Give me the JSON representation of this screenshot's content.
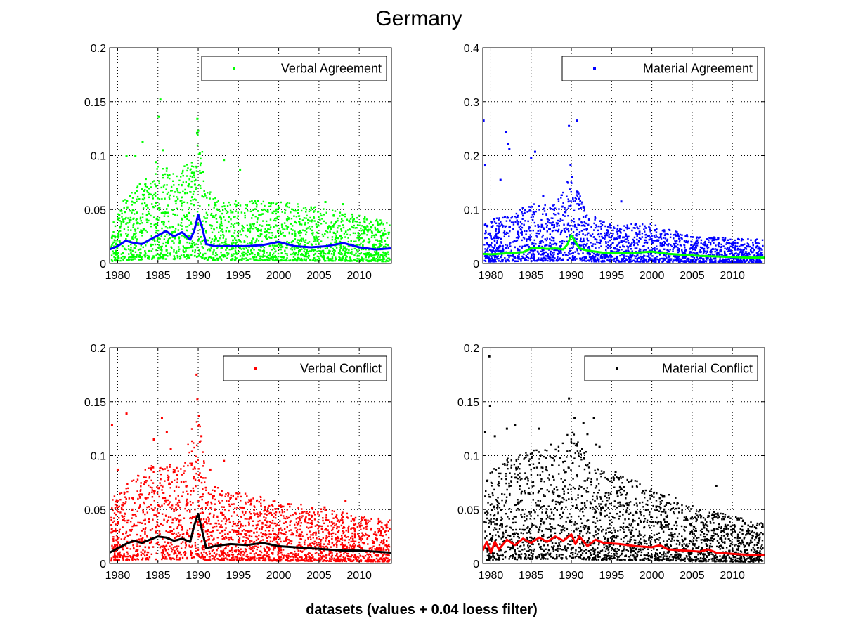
{
  "figure": {
    "title": "Germany",
    "xlabel": "datasets (values + 0.04 loess filter)"
  },
  "chart_data": [
    {
      "type": "scatter",
      "legend": {
        "label": "Verbal Agreement",
        "placement": "top-right"
      },
      "marker_color": "#00ff00",
      "trend_color": "#0000ff",
      "xlim": [
        1979,
        2014
      ],
      "ylim": [
        0,
        0.2
      ],
      "xticks": [
        1980,
        1985,
        1990,
        1995,
        2000,
        2005,
        2010
      ],
      "yticks": [
        0,
        0.05,
        0.1,
        0.15,
        0.2
      ],
      "ytick_labels": [
        "0",
        "0.05",
        "0.1",
        "0.15",
        "0.2"
      ],
      "grid": true,
      "point_density": 2200,
      "scatter_base": [
        [
          1979,
          0.013
        ],
        [
          1982,
          0.022
        ],
        [
          1985,
          0.028
        ],
        [
          1987,
          0.026
        ],
        [
          1989.5,
          0.03
        ],
        [
          1990,
          0.045
        ],
        [
          1991,
          0.022
        ],
        [
          1993,
          0.018
        ],
        [
          2000,
          0.018
        ],
        [
          2005,
          0.016
        ],
        [
          2014,
          0.012
        ]
      ],
      "scatter_spread": 1.4,
      "outliers": [
        [
          1980.2,
          0.045
        ],
        [
          1981.1,
          0.1
        ],
        [
          1982.2,
          0.1
        ],
        [
          1983.1,
          0.113
        ],
        [
          1984.8,
          0.094
        ],
        [
          1985.1,
          0.136
        ],
        [
          1985.3,
          0.152
        ],
        [
          1985.6,
          0.105
        ],
        [
          1986.1,
          0.088
        ],
        [
          1989.6,
          0.073
        ],
        [
          1989.9,
          0.134
        ],
        [
          1990.0,
          0.123
        ],
        [
          1990.2,
          0.102
        ],
        [
          1990.6,
          0.085
        ],
        [
          1993.2,
          0.096
        ],
        [
          1995.2,
          0.087
        ],
        [
          2005.8,
          0.057
        ],
        [
          2008.0,
          0.055
        ]
      ],
      "trend": {
        "x": [
          1979,
          1980,
          1981,
          1982,
          1983,
          1984,
          1985,
          1986,
          1987,
          1988,
          1989,
          1989.5,
          1990,
          1990.5,
          1991,
          1992,
          1994,
          1996,
          1998,
          2000,
          2002,
          2004,
          2006,
          2008,
          2010,
          2012,
          2014
        ],
        "y": [
          0.013,
          0.016,
          0.021,
          0.019,
          0.018,
          0.022,
          0.026,
          0.03,
          0.025,
          0.029,
          0.022,
          0.03,
          0.045,
          0.033,
          0.018,
          0.016,
          0.016,
          0.016,
          0.017,
          0.02,
          0.016,
          0.015,
          0.016,
          0.019,
          0.015,
          0.013,
          0.014
        ]
      }
    },
    {
      "type": "scatter",
      "legend": {
        "label": "Material Agreement",
        "placement": "top-right"
      },
      "marker_color": "#0000ff",
      "trend_color": "#00ff00",
      "xlim": [
        1979,
        2014
      ],
      "ylim": [
        0,
        0.4
      ],
      "xticks": [
        1980,
        1985,
        1990,
        1995,
        2000,
        2005,
        2010
      ],
      "yticks": [
        0,
        0.1,
        0.2,
        0.3,
        0.4
      ],
      "ytick_labels": [
        "0",
        "0.1",
        "0.2",
        "0.3",
        "0.4"
      ],
      "grid": true,
      "point_density": 2200,
      "scatter_base": [
        [
          1979,
          0.02
        ],
        [
          1982,
          0.025
        ],
        [
          1985,
          0.03
        ],
        [
          1988,
          0.03
        ],
        [
          1990,
          0.045
        ],
        [
          1992,
          0.025
        ],
        [
          1995,
          0.02
        ],
        [
          2000,
          0.02
        ],
        [
          2005,
          0.014
        ],
        [
          2014,
          0.012
        ]
      ],
      "scatter_spread": 1.6,
      "outliers": [
        [
          1979.1,
          0.265
        ],
        [
          1979.3,
          0.183
        ],
        [
          1981.2,
          0.155
        ],
        [
          1981.9,
          0.243
        ],
        [
          1982.1,
          0.222
        ],
        [
          1982.3,
          0.213
        ],
        [
          1985.0,
          0.195
        ],
        [
          1985.5,
          0.207
        ],
        [
          1986.5,
          0.125
        ],
        [
          1989.7,
          0.255
        ],
        [
          1989.9,
          0.183
        ],
        [
          1990.1,
          0.16
        ],
        [
          1990.7,
          0.265
        ],
        [
          1996.2,
          0.115
        ],
        [
          1991.5,
          0.105
        ]
      ],
      "trend": {
        "x": [
          1979,
          1980,
          1982,
          1984,
          1985,
          1986,
          1987,
          1988,
          1989,
          1989.5,
          1990,
          1990.5,
          1991,
          1992,
          1994,
          1996,
          1998,
          2000,
          2002,
          2004,
          2006,
          2008,
          2010,
          2012,
          2014
        ],
        "y": [
          0.018,
          0.017,
          0.019,
          0.021,
          0.028,
          0.029,
          0.027,
          0.028,
          0.026,
          0.035,
          0.052,
          0.04,
          0.028,
          0.024,
          0.02,
          0.02,
          0.02,
          0.022,
          0.018,
          0.016,
          0.014,
          0.013,
          0.012,
          0.011,
          0.011
        ]
      }
    },
    {
      "type": "scatter",
      "legend": {
        "label": "Verbal Conflict",
        "placement": "top-right"
      },
      "marker_color": "#ff0000",
      "trend_color": "#000000",
      "xlim": [
        1979,
        2014
      ],
      "ylim": [
        0,
        0.2
      ],
      "xticks": [
        1980,
        1985,
        1990,
        1995,
        2000,
        2005,
        2010
      ],
      "yticks": [
        0,
        0.05,
        0.1,
        0.15,
        0.2
      ],
      "ytick_labels": [
        "0",
        "0.05",
        "0.1",
        "0.15",
        "0.2"
      ],
      "grid": true,
      "point_density": 2400,
      "scatter_base": [
        [
          1979,
          0.016
        ],
        [
          1982,
          0.022
        ],
        [
          1985,
          0.026
        ],
        [
          1988,
          0.024
        ],
        [
          1990,
          0.042
        ],
        [
          1991,
          0.02
        ],
        [
          1995,
          0.018
        ],
        [
          2000,
          0.016
        ],
        [
          2005,
          0.014
        ],
        [
          2014,
          0.011
        ]
      ],
      "scatter_spread": 1.6,
      "outliers": [
        [
          1979.3,
          0.128
        ],
        [
          1980.0,
          0.087
        ],
        [
          1981.1,
          0.139
        ],
        [
          1984.5,
          0.115
        ],
        [
          1985.5,
          0.135
        ],
        [
          1986.1,
          0.122
        ],
        [
          1986.6,
          0.106
        ],
        [
          1989.8,
          0.175
        ],
        [
          1989.9,
          0.152
        ],
        [
          1990.1,
          0.137
        ],
        [
          1990.4,
          0.118
        ],
        [
          1993.2,
          0.095
        ],
        [
          1991.5,
          0.087
        ],
        [
          2001.2,
          0.055
        ],
        [
          2005.7,
          0.052
        ],
        [
          2008.3,
          0.058
        ]
      ],
      "trend": {
        "x": [
          1979,
          1980,
          1981,
          1982,
          1983,
          1984,
          1985,
          1986,
          1987,
          1988,
          1989,
          1989.5,
          1990,
          1990.5,
          1991,
          1992,
          1994,
          1996,
          1998,
          2000,
          2002,
          2004,
          2006,
          2008,
          2010,
          2012,
          2014
        ],
        "y": [
          0.01,
          0.014,
          0.018,
          0.021,
          0.019,
          0.022,
          0.025,
          0.024,
          0.021,
          0.023,
          0.02,
          0.035,
          0.046,
          0.03,
          0.014,
          0.016,
          0.018,
          0.017,
          0.019,
          0.016,
          0.015,
          0.014,
          0.013,
          0.012,
          0.012,
          0.011,
          0.01
        ]
      }
    },
    {
      "type": "scatter",
      "legend": {
        "label": "Material Conflict",
        "placement": "top-right"
      },
      "marker_color": "#000000",
      "trend_color": "#ff0000",
      "xlim": [
        1979,
        2014
      ],
      "ylim": [
        0,
        0.2
      ],
      "xticks": [
        1980,
        1985,
        1990,
        1995,
        2000,
        2005,
        2010
      ],
      "yticks": [
        0,
        0.05,
        0.1,
        0.15,
        0.2
      ],
      "ytick_labels": [
        "0",
        "0.05",
        "0.1",
        "0.15",
        "0.2"
      ],
      "grid": true,
      "point_density": 2400,
      "scatter_base": [
        [
          1979,
          0.02
        ],
        [
          1982,
          0.024
        ],
        [
          1985,
          0.026
        ],
        [
          1988,
          0.026
        ],
        [
          1990,
          0.03
        ],
        [
          1993,
          0.022
        ],
        [
          1996,
          0.02
        ],
        [
          2000,
          0.018
        ],
        [
          2005,
          0.013
        ],
        [
          2014,
          0.009
        ]
      ],
      "scatter_spread": 1.8,
      "outliers": [
        [
          1979.3,
          0.122
        ],
        [
          1979.8,
          0.192
        ],
        [
          1979.9,
          0.146
        ],
        [
          1980.5,
          0.118
        ],
        [
          1982.0,
          0.125
        ],
        [
          1983.0,
          0.128
        ],
        [
          1986.0,
          0.125
        ],
        [
          1987.5,
          0.11
        ],
        [
          1989.7,
          0.153
        ],
        [
          1990.4,
          0.135
        ],
        [
          1991.5,
          0.13
        ],
        [
          1992.0,
          0.12
        ],
        [
          1992.8,
          0.135
        ],
        [
          1993.1,
          0.11
        ],
        [
          1993.5,
          0.108
        ],
        [
          1995.5,
          0.085
        ],
        [
          2001.5,
          0.05
        ],
        [
          2008.0,
          0.072
        ]
      ],
      "trend": {
        "x": [
          1979,
          1979.5,
          1980,
          1980.5,
          1981,
          1982,
          1983,
          1984,
          1985,
          1986,
          1987,
          1988,
          1989,
          1990,
          1990.5,
          1991,
          1992,
          1993,
          1994,
          1996,
          1998,
          2000,
          2001,
          2002,
          2004,
          2006,
          2007,
          2008,
          2010,
          2012,
          2014
        ],
        "y": [
          0.012,
          0.02,
          0.01,
          0.02,
          0.013,
          0.022,
          0.017,
          0.023,
          0.019,
          0.024,
          0.02,
          0.025,
          0.021,
          0.027,
          0.018,
          0.025,
          0.016,
          0.022,
          0.019,
          0.018,
          0.016,
          0.015,
          0.017,
          0.013,
          0.012,
          0.011,
          0.013,
          0.01,
          0.009,
          0.008,
          0.008
        ]
      }
    }
  ]
}
